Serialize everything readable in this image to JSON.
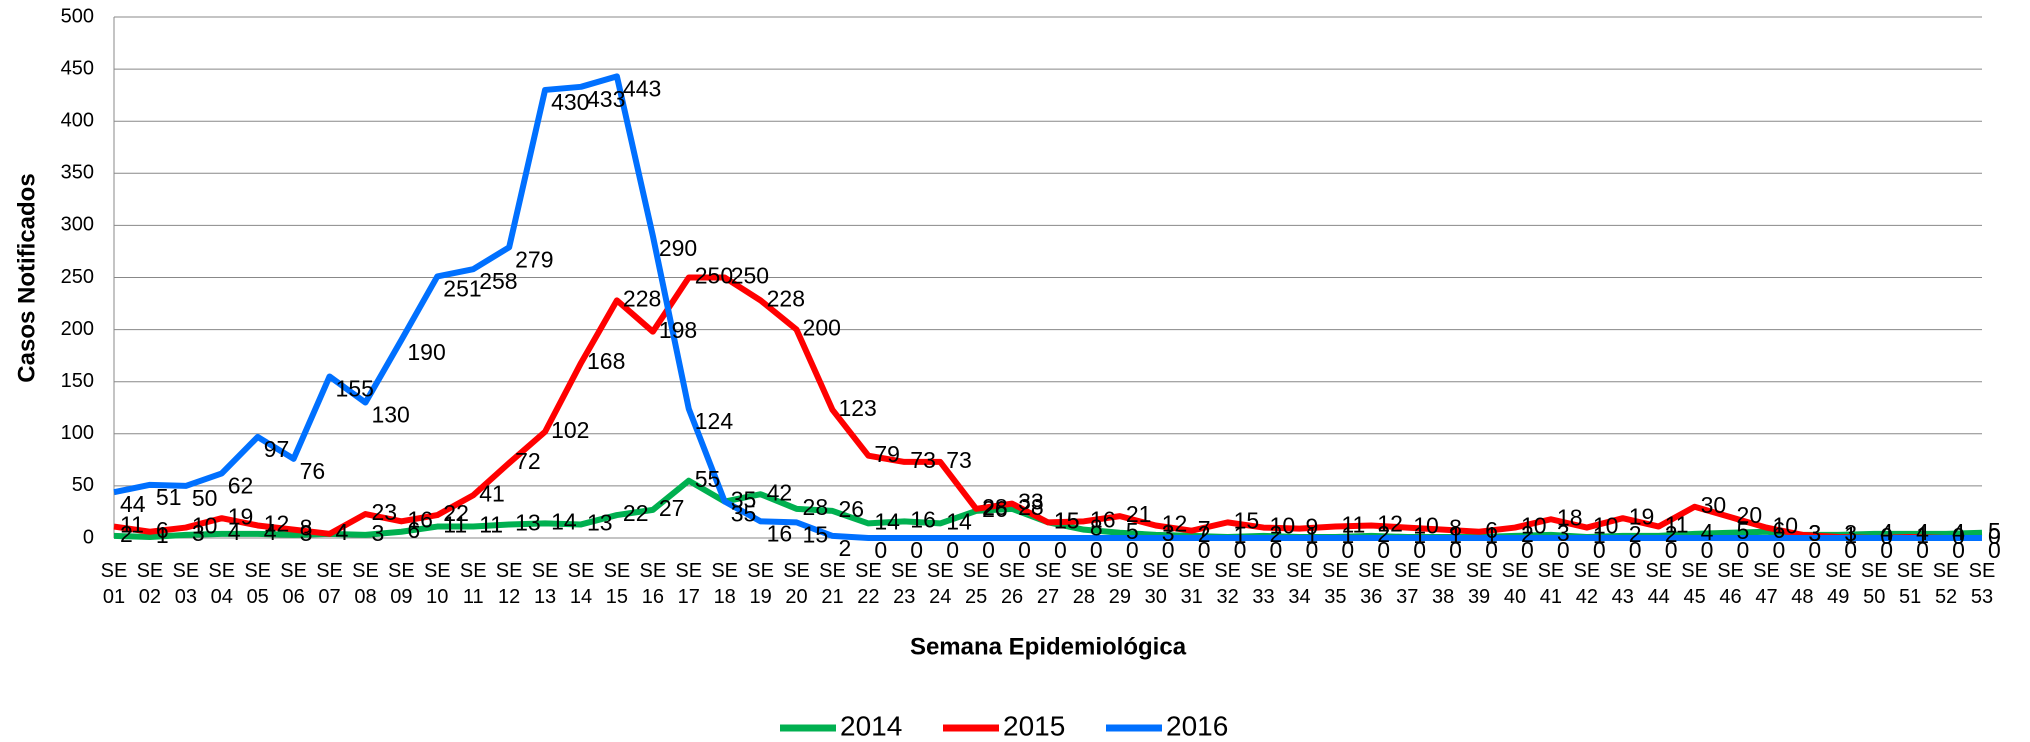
{
  "chart_data": {
    "type": "line",
    "x_label": "Semana Epidemiológica",
    "y_label": "Casos Notificados",
    "categories": [
      "SE 01",
      "SE 02",
      "SE 03",
      "SE 04",
      "SE 05",
      "SE 06",
      "SE 07",
      "SE 08",
      "SE 09",
      "SE 10",
      "SE 11",
      "SE 12",
      "SE 13",
      "SE 14",
      "SE 15",
      "SE 16",
      "SE 17",
      "SE 18",
      "SE 19",
      "SE 20",
      "SE 21",
      "SE 22",
      "SE 23",
      "SE 24",
      "SE 25",
      "SE 26",
      "SE 27",
      "SE 28",
      "SE 29",
      "SE 30",
      "SE 31",
      "SE 32",
      "SE 33",
      "SE 34",
      "SE 35",
      "SE 36",
      "SE 37",
      "SE 38",
      "SE 39",
      "SE 40",
      "SE 41",
      "SE 42",
      "SE 43",
      "SE 44",
      "SE 45",
      "SE 46",
      "SE 47",
      "SE 48",
      "SE 49",
      "SE 50",
      "SE 51",
      "SE 52",
      "SE 53"
    ],
    "series": [
      {
        "name": "2014",
        "color": "#00b050",
        "values": [
          2,
          1,
          3,
          4,
          4,
          3,
          4,
          3,
          6,
          11,
          11,
          13,
          14,
          13,
          22,
          27,
          55,
          35,
          42,
          28,
          26,
          14,
          16,
          14,
          26,
          28,
          15,
          8,
          5,
          3,
          2,
          1,
          2,
          1,
          1,
          2,
          1,
          1,
          1,
          2,
          3,
          1,
          2,
          2,
          4,
          5,
          6,
          3,
          3,
          4,
          4,
          4,
          5
        ]
      },
      {
        "name": "2015",
        "color": "#ff0000",
        "values": [
          11,
          6,
          10,
          19,
          12,
          8,
          4,
          23,
          16,
          22,
          41,
          72,
          102,
          168,
          228,
          198,
          250,
          250,
          228,
          200,
          123,
          79,
          73,
          73,
          28,
          33,
          15,
          16,
          21,
          12,
          7,
          15,
          10,
          9,
          11,
          12,
          10,
          8,
          6,
          10,
          18,
          10,
          19,
          11,
          30,
          20,
          10,
          3,
          1,
          0,
          1,
          0,
          0
        ]
      },
      {
        "name": "2016",
        "color": "#0070ff",
        "values": [
          44,
          51,
          50,
          62,
          97,
          76,
          155,
          130,
          190,
          251,
          258,
          279,
          430,
          433,
          443,
          290,
          124,
          35,
          16,
          15,
          2,
          0,
          0,
          0,
          0,
          0,
          0,
          0,
          0,
          0,
          0,
          0,
          0,
          0,
          0,
          0,
          0,
          0,
          0,
          0,
          0,
          0,
          0,
          0,
          0,
          0,
          0,
          0,
          0,
          0,
          0,
          0,
          0
        ]
      }
    ],
    "ylim": [
      0,
      500
    ],
    "yticks": [
      0,
      50,
      100,
      150,
      200,
      250,
      300,
      350,
      400,
      450,
      500
    ],
    "grid": true,
    "legend": "bottom"
  }
}
